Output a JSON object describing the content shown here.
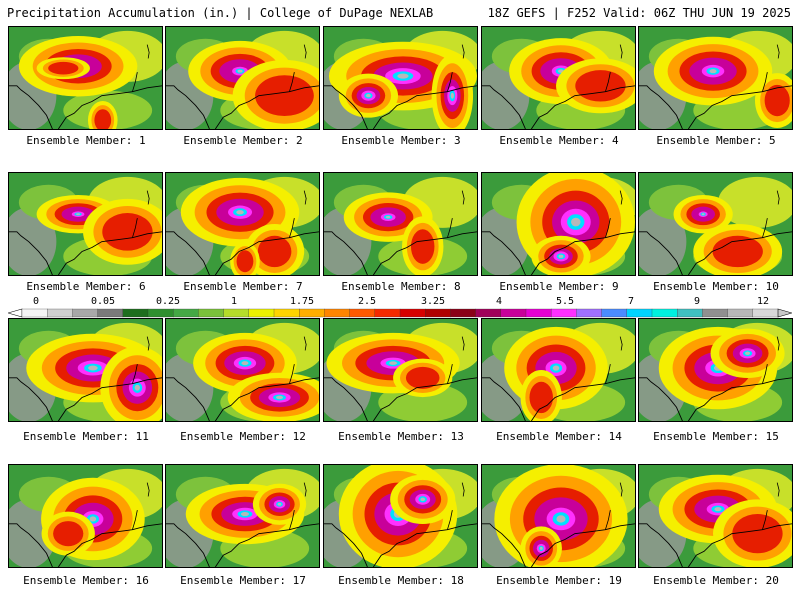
{
  "header": {
    "title_left": "Precipitation Accumulation (in.) | College of DuPage NEXLAB",
    "title_right": "18Z GEFS | F252 Valid: 06Z THU JUN 19 2025"
  },
  "members": [
    {
      "label": "Ensemble Member: 1"
    },
    {
      "label": "Ensemble Member: 2"
    },
    {
      "label": "Ensemble Member: 3"
    },
    {
      "label": "Ensemble Member: 4"
    },
    {
      "label": "Ensemble Member: 5"
    },
    {
      "label": "Ensemble Member: 6"
    },
    {
      "label": "Ensemble Member: 7"
    },
    {
      "label": "Ensemble Member: 8"
    },
    {
      "label": "Ensemble Member: 9"
    },
    {
      "label": "Ensemble Member: 10"
    },
    {
      "label": "Ensemble Member: 11"
    },
    {
      "label": "Ensemble Member: 12"
    },
    {
      "label": "Ensemble Member: 13"
    },
    {
      "label": "Ensemble Member: 14"
    },
    {
      "label": "Ensemble Member: 15"
    },
    {
      "label": "Ensemble Member: 16"
    },
    {
      "label": "Ensemble Member: 17"
    },
    {
      "label": "Ensemble Member: 18"
    },
    {
      "label": "Ensemble Member: 19"
    },
    {
      "label": "Ensemble Member: 20"
    }
  ],
  "colorbar": {
    "tick_labels": [
      "0",
      "0.05",
      "0.25",
      "1",
      "1.75",
      "2.5",
      "3.25",
      "4",
      "5.5",
      "7",
      "9",
      "12"
    ],
    "colors": [
      "#f4f4f4",
      "#d0d0d0",
      "#a8a8a8",
      "#7a7a7a",
      "#1e6e1e",
      "#2f8f2f",
      "#45a845",
      "#7ac13a",
      "#b5dc2a",
      "#ecf000",
      "#ffd400",
      "#ffae00",
      "#ff8500",
      "#ff5a00",
      "#f52a00",
      "#d70000",
      "#b00000",
      "#8a0018",
      "#a0005a",
      "#c8009a",
      "#e600d2",
      "#ff30ff",
      "#a070ff",
      "#4b8cff",
      "#00d4ff",
      "#00f0e0",
      "#40c0c0",
      "#909090",
      "#b8b8b8",
      "#d8d8d8"
    ]
  }
}
